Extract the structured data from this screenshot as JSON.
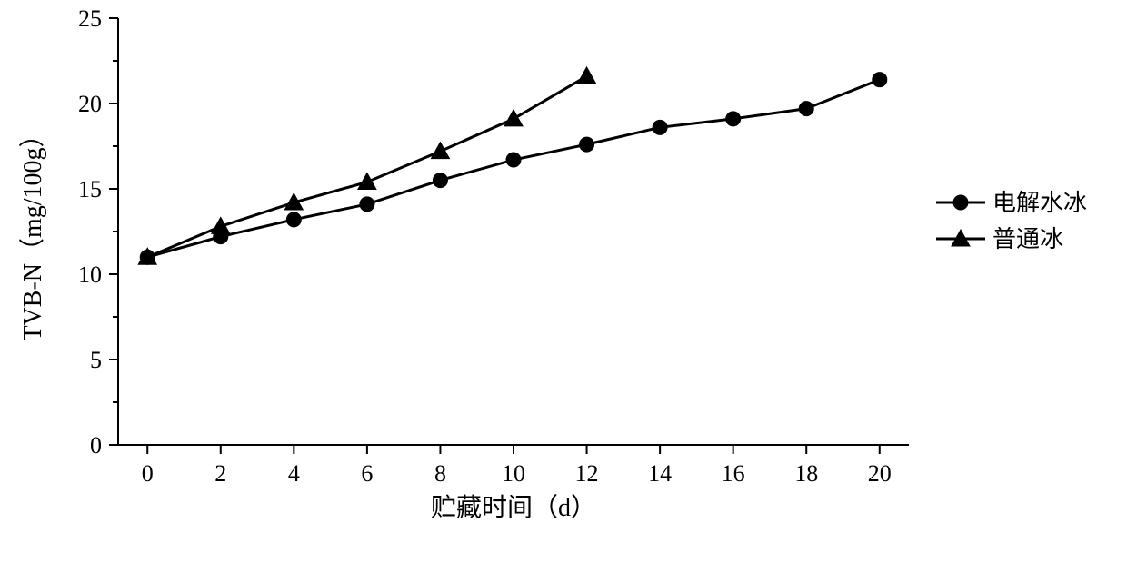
{
  "chart": {
    "type": "line",
    "background_color": "#ffffff",
    "axis_color": "#000000",
    "line_color": "#000000",
    "text_color": "#000000",
    "line_width": 3,
    "axis_width": 2,
    "marker_size": 8,
    "tick_length_major": 10,
    "tick_length_minor": 6,
    "tick_fontsize": 26,
    "axis_title_fontsize": 28,
    "legend_fontsize": 26,
    "x_axis": {
      "title": "贮藏时间（d）",
      "lim": [
        -0.8,
        20.8
      ],
      "ticks": [
        0,
        2,
        4,
        6,
        8,
        10,
        12,
        14,
        16,
        18,
        20
      ],
      "tick_labels": [
        "0",
        "2",
        "4",
        "6",
        "8",
        "10",
        "12",
        "14",
        "16",
        "18",
        "20"
      ]
    },
    "y_axis": {
      "title": "TVB-N（mg/100g）",
      "lim": [
        0,
        25
      ],
      "ticks": [
        0,
        5,
        10,
        15,
        20,
        25
      ],
      "tick_labels": [
        "0",
        "5",
        "10",
        "15",
        "20",
        "25"
      ],
      "minor_between": [
        2.5,
        7.5,
        12.5,
        17.5,
        22.5
      ]
    },
    "series": [
      {
        "name": "电解水冰",
        "marker": "circle",
        "xs": [
          0,
          2,
          4,
          6,
          8,
          10,
          12,
          14,
          16,
          18,
          20
        ],
        "ys": [
          11.0,
          12.2,
          13.2,
          14.1,
          15.5,
          16.7,
          17.6,
          18.6,
          19.1,
          19.7,
          21.4
        ]
      },
      {
        "name": "普通冰",
        "marker": "triangle",
        "xs": [
          0,
          2,
          4,
          6,
          8,
          10,
          12
        ],
        "ys": [
          11.0,
          12.8,
          14.2,
          15.4,
          17.2,
          19.1,
          21.6
        ]
      }
    ],
    "legend": {
      "position": "right",
      "items": [
        "电解水冰",
        "普通冰"
      ]
    }
  }
}
